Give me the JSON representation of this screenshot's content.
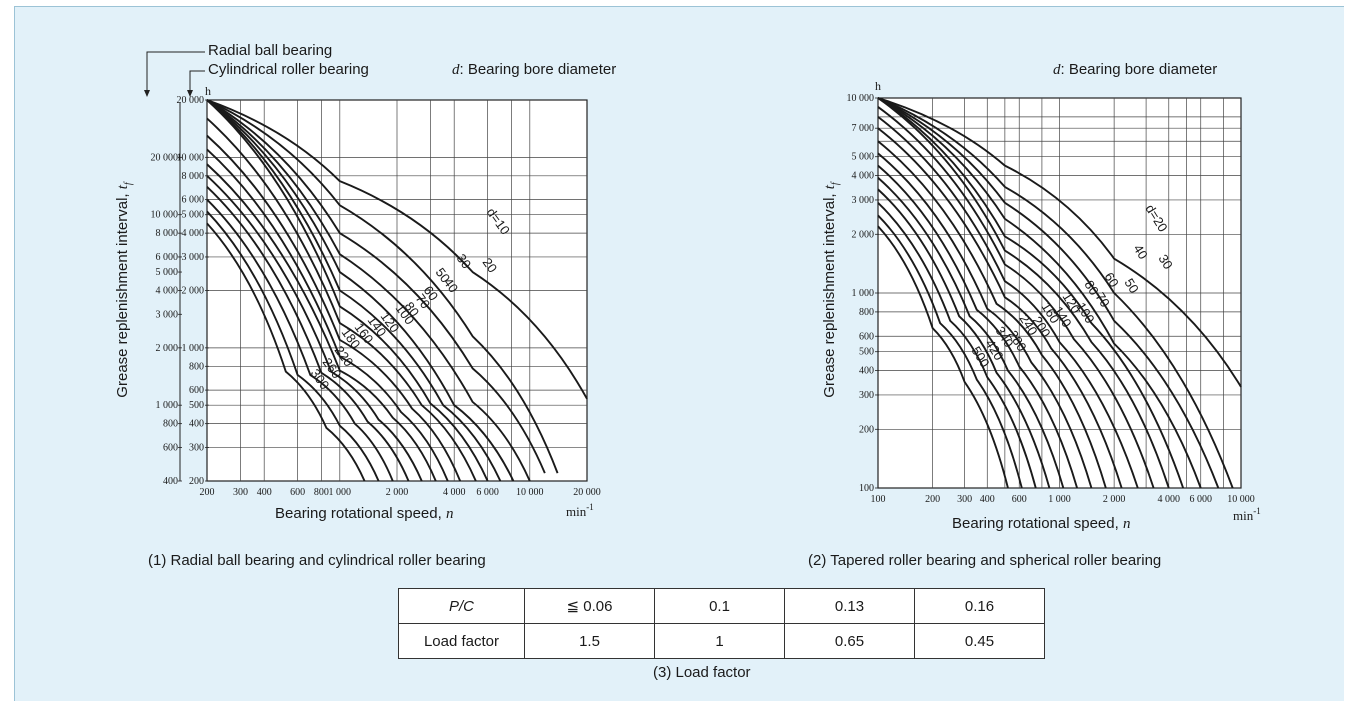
{
  "chart_data": [
    {
      "type": "line",
      "title": "",
      "legend": [
        "Radial ball bearing",
        "Cylindrical roller bearing"
      ],
      "annotation": "d: Bearing bore diameter",
      "xlabel": "Bearing rotational speed, n",
      "x_unit": "min-1",
      "ylabel": "Grease replenishment interval, tf",
      "y_unit": "h",
      "x_scale": "log",
      "y_scale": "log",
      "xlim": [
        200,
        20000
      ],
      "ylim_cylindrical_roller": [
        200,
        20000
      ],
      "ylim_radial_ball": [
        400,
        40000
      ],
      "x_ticks": [
        "200",
        "300",
        "400",
        "600",
        "800",
        "1 000",
        "2 000",
        "4 000",
        "6 000",
        "10 000",
        "20 000"
      ],
      "y_ticks_cylindrical_roller": [
        "20 000",
        "10 000",
        "8 000",
        "6 000",
        "5 000",
        "4 000",
        "3 000",
        "2 000",
        "1 000",
        "800",
        "600",
        "500",
        "400",
        "300",
        "200"
      ],
      "y_ticks_radial_ball": [
        "20 000",
        "10 000",
        "8 000",
        "6 000",
        "5 000",
        "4 000",
        "3 000",
        "2 000",
        "1 000",
        "800",
        "600",
        "400"
      ],
      "series_labels": [
        "d=10",
        "20",
        "30",
        "40",
        "50",
        "60",
        "70",
        "80",
        "100",
        "120",
        "140",
        "160",
        "180",
        "220",
        "260",
        "300"
      ],
      "series": [
        {
          "name": "10",
          "x": [
            200,
            1000,
            5000,
            20000
          ],
          "y": [
            20000,
            7500,
            2500,
            540
          ]
        },
        {
          "name": "20",
          "x": [
            200,
            1000,
            5000,
            14000
          ],
          "y": [
            20000,
            5600,
            1150,
            220
          ]
        },
        {
          "name": "30",
          "x": [
            200,
            1000,
            5000,
            12000
          ],
          "y": [
            20000,
            4000,
            780,
            220
          ]
        },
        {
          "name": "40",
          "x": [
            200,
            1000,
            5000,
            10000
          ],
          "y": [
            20000,
            3100,
            520,
            200
          ]
        },
        {
          "name": "50",
          "x": [
            200,
            1000,
            4000,
            8200
          ],
          "y": [
            20000,
            2500,
            500,
            200
          ]
        },
        {
          "name": "60",
          "x": [
            200,
            1000,
            3500,
            7000
          ],
          "y": [
            20000,
            2000,
            500,
            200
          ]
        },
        {
          "name": "70",
          "x": [
            200,
            1000,
            3000,
            6000
          ],
          "y": [
            20000,
            1650,
            510,
            200
          ]
        },
        {
          "name": "80",
          "x": [
            200,
            1000,
            2700,
            5200
          ],
          "y": [
            16000,
            1350,
            500,
            200
          ]
        },
        {
          "name": "100",
          "x": [
            200,
            1000,
            2400,
            4300
          ],
          "y": [
            13000,
            1100,
            480,
            200
          ]
        },
        {
          "name": "120",
          "x": [
            200,
            1000,
            2100,
            3700
          ],
          "y": [
            11000,
            900,
            460,
            200
          ]
        },
        {
          "name": "140",
          "x": [
            200,
            1000,
            1900,
            3200
          ],
          "y": [
            9200,
            760,
            430,
            200
          ]
        },
        {
          "name": "160",
          "x": [
            200,
            900,
            1600,
            2700
          ],
          "y": [
            8000,
            750,
            420,
            200
          ]
        },
        {
          "name": "180",
          "x": [
            200,
            800,
            1400,
            2300
          ],
          "y": [
            7000,
            740,
            410,
            200
          ]
        },
        {
          "name": "220",
          "x": [
            200,
            700,
            1200,
            1900
          ],
          "y": [
            6000,
            720,
            400,
            200
          ]
        },
        {
          "name": "260",
          "x": [
            200,
            600,
            1000,
            1600
          ],
          "y": [
            5200,
            720,
            390,
            200
          ]
        },
        {
          "name": "300",
          "x": [
            200,
            520,
            850,
            1350
          ],
          "y": [
            4500,
            750,
            380,
            200
          ]
        }
      ]
    },
    {
      "type": "line",
      "title": "",
      "annotation": "d: Bearing bore diameter",
      "xlabel": "Bearing rotational speed, n",
      "x_unit": "min-1",
      "ylabel": "Grease replenishment interval, tf",
      "y_unit": "h",
      "x_scale": "log",
      "y_scale": "log",
      "xlim": [
        100,
        10000
      ],
      "ylim": [
        100,
        10000
      ],
      "x_ticks": [
        "100",
        "200",
        "300",
        "400",
        "600",
        "1 000",
        "2 000",
        "4 000",
        "6 000",
        "10 000"
      ],
      "y_ticks": [
        "10 000",
        "7 000",
        "5 000",
        "4 000",
        "3 000",
        "2 000",
        "1 000",
        "800",
        "600",
        "500",
        "400",
        "300",
        "200",
        "100"
      ],
      "series_labels": [
        "d=20",
        "30",
        "40",
        "50",
        "60",
        "70",
        "80",
        "100",
        "120",
        "140",
        "160",
        "200",
        "240",
        "280",
        "340",
        "420",
        "500"
      ],
      "series": [
        {
          "name": "20",
          "x": [
            100,
            500,
            2000,
            10000
          ],
          "y": [
            10000,
            4500,
            1500,
            330
          ]
        },
        {
          "name": "30",
          "x": [
            100,
            500,
            2000,
            9000
          ],
          "y": [
            10000,
            3500,
            1000,
            100
          ]
        },
        {
          "name": "40",
          "x": [
            100,
            500,
            2000,
            7500
          ],
          "y": [
            10000,
            2900,
            720,
            100
          ]
        },
        {
          "name": "50",
          "x": [
            100,
            500,
            2000,
            6000
          ],
          "y": [
            10000,
            2400,
            550,
            100
          ]
        },
        {
          "name": "60",
          "x": [
            100,
            500,
            1500,
            4800
          ],
          "y": [
            10000,
            1950,
            700,
            100
          ]
        },
        {
          "name": "70",
          "x": [
            100,
            500,
            1500,
            4000
          ],
          "y": [
            10000,
            1650,
            560,
            100
          ]
        },
        {
          "name": "80",
          "x": [
            100,
            500,
            1200,
            3300
          ],
          "y": [
            9000,
            1400,
            580,
            100
          ]
        },
        {
          "name": "100",
          "x": [
            100,
            500,
            1000,
            2700
          ],
          "y": [
            8000,
            1150,
            560,
            100
          ]
        },
        {
          "name": "120",
          "x": [
            100,
            500,
            900,
            2200
          ],
          "y": [
            7000,
            950,
            520,
            100
          ]
        },
        {
          "name": "140",
          "x": [
            100,
            450,
            800,
            1800
          ],
          "y": [
            6000,
            880,
            480,
            100
          ]
        },
        {
          "name": "160",
          "x": [
            100,
            400,
            700,
            1500
          ],
          "y": [
            5200,
            830,
            440,
            100
          ]
        },
        {
          "name": "200",
          "x": [
            100,
            350,
            600,
            1250
          ],
          "y": [
            4500,
            820,
            420,
            100
          ]
        },
        {
          "name": "240",
          "x": [
            100,
            320,
            520,
            1050
          ],
          "y": [
            3900,
            760,
            400,
            100
          ]
        },
        {
          "name": "280",
          "x": [
            100,
            280,
            450,
            880
          ],
          "y": [
            3400,
            760,
            390,
            100
          ]
        },
        {
          "name": "340",
          "x": [
            100,
            250,
            400,
            740
          ],
          "y": [
            2900,
            720,
            370,
            100
          ]
        },
        {
          "name": "420",
          "x": [
            100,
            220,
            350,
            620
          ],
          "y": [
            2500,
            700,
            360,
            100
          ]
        },
        {
          "name": "500",
          "x": [
            100,
            200,
            300,
            520
          ],
          "y": [
            2200,
            660,
            350,
            100
          ]
        }
      ]
    }
  ],
  "captions": {
    "left": "(1) Radial ball bearing and cylindrical roller bearing",
    "right": "(2) Tapered roller bearing and spherical roller bearing",
    "table": "(3) Load factor"
  },
  "load_table": {
    "row1_label": "P/C",
    "row1": [
      "≦ 0.06",
      "0.1",
      "0.13",
      "0.16"
    ],
    "row2_label": "Load factor",
    "row2": [
      "1.5",
      "1",
      "0.65",
      "0.45"
    ]
  },
  "colors": {
    "panel_bg": "#e2f1f9",
    "plot_bg": "#ffffff",
    "curve": "#1a1a1a"
  }
}
